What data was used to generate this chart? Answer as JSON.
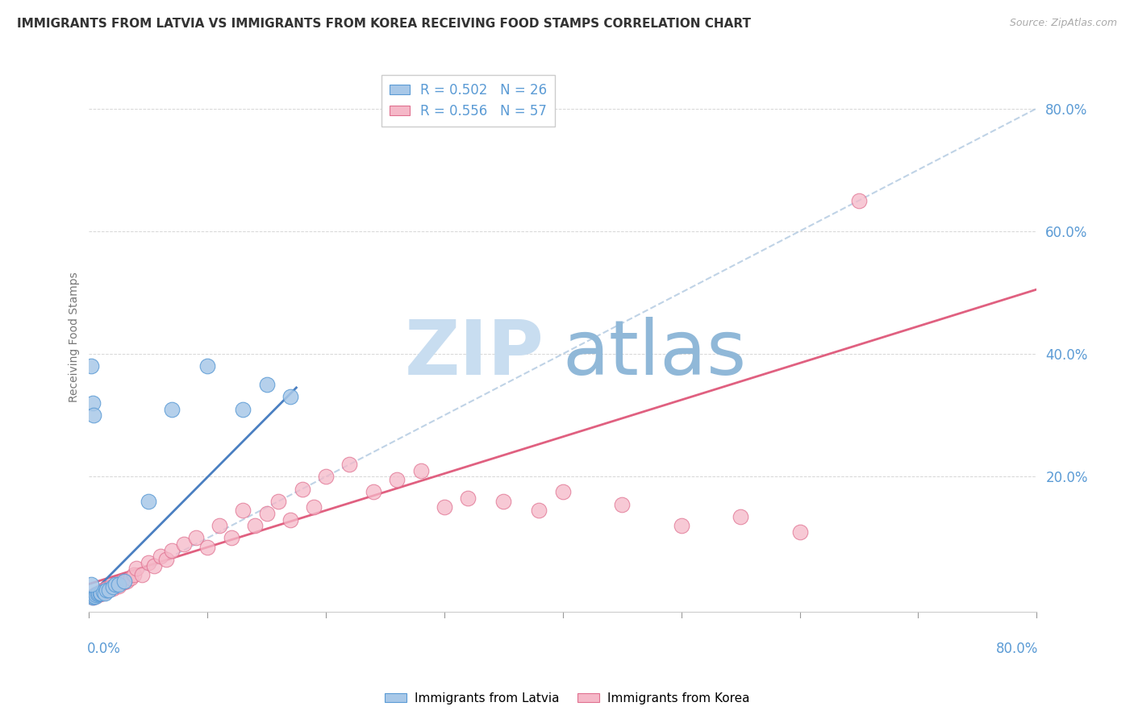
{
  "title": "IMMIGRANTS FROM LATVIA VS IMMIGRANTS FROM KOREA RECEIVING FOOD STAMPS CORRELATION CHART",
  "source": "Source: ZipAtlas.com",
  "ylabel": "Receiving Food Stamps",
  "yticks_labels": [
    "80.0%",
    "60.0%",
    "40.0%",
    "20.0%"
  ],
  "ytick_vals": [
    0.8,
    0.6,
    0.4,
    0.2
  ],
  "xlim": [
    0.0,
    0.8
  ],
  "ylim": [
    -0.02,
    0.875
  ],
  "legend_label_latvia": "Immigrants from Latvia",
  "legend_label_korea": "Immigrants from Korea",
  "color_latvia_fill": "#a8c8e8",
  "color_latvia_edge": "#5b9bd5",
  "color_korea_fill": "#f5b8c8",
  "color_korea_edge": "#e07090",
  "color_line_latvia": "#4a7fc1",
  "color_line_korea": "#e06080",
  "color_diag": "#b0c8e0",
  "color_axis_labels": "#5b9bd5",
  "color_title": "#333333",
  "watermark_zip": "ZIP",
  "watermark_atlas": "atlas",
  "watermark_color_zip": "#c8ddf0",
  "watermark_color_atlas": "#90b8d8",
  "background_color": "#ffffff",
  "grid_color": "#cccccc",
  "latvia_x": [
    0.003,
    0.004,
    0.005,
    0.006,
    0.007,
    0.008,
    0.009,
    0.01,
    0.012,
    0.013,
    0.015,
    0.017,
    0.02,
    0.022,
    0.025,
    0.03,
    0.05,
    0.07,
    0.1,
    0.13,
    0.15,
    0.17,
    0.002,
    0.003,
    0.004,
    0.002
  ],
  "latvia_y": [
    0.003,
    0.005,
    0.005,
    0.007,
    0.008,
    0.01,
    0.01,
    0.01,
    0.012,
    0.01,
    0.015,
    0.015,
    0.02,
    0.025,
    0.025,
    0.03,
    0.16,
    0.31,
    0.38,
    0.31,
    0.35,
    0.33,
    0.38,
    0.32,
    0.3,
    0.025
  ],
  "korea_x": [
    0.003,
    0.004,
    0.005,
    0.006,
    0.007,
    0.008,
    0.009,
    0.01,
    0.011,
    0.012,
    0.013,
    0.014,
    0.015,
    0.016,
    0.018,
    0.02,
    0.022,
    0.025,
    0.028,
    0.03,
    0.032,
    0.035,
    0.038,
    0.04,
    0.045,
    0.05,
    0.055,
    0.06,
    0.065,
    0.07,
    0.08,
    0.09,
    0.1,
    0.11,
    0.12,
    0.13,
    0.14,
    0.15,
    0.16,
    0.17,
    0.18,
    0.19,
    0.2,
    0.22,
    0.24,
    0.26,
    0.28,
    0.3,
    0.32,
    0.35,
    0.38,
    0.4,
    0.45,
    0.5,
    0.55,
    0.6,
    0.65
  ],
  "korea_y": [
    0.004,
    0.006,
    0.005,
    0.008,
    0.007,
    0.01,
    0.009,
    0.012,
    0.01,
    0.015,
    0.012,
    0.014,
    0.018,
    0.015,
    0.02,
    0.018,
    0.025,
    0.022,
    0.03,
    0.028,
    0.03,
    0.035,
    0.04,
    0.05,
    0.04,
    0.06,
    0.055,
    0.07,
    0.065,
    0.08,
    0.09,
    0.1,
    0.085,
    0.12,
    0.1,
    0.145,
    0.12,
    0.14,
    0.16,
    0.13,
    0.18,
    0.15,
    0.2,
    0.22,
    0.175,
    0.195,
    0.21,
    0.15,
    0.165,
    0.16,
    0.145,
    0.175,
    0.155,
    0.12,
    0.135,
    0.11,
    0.65
  ],
  "latvia_line_x": [
    0.0,
    0.175
  ],
  "latvia_line_y": [
    0.005,
    0.345
  ],
  "korea_line_x": [
    0.0,
    0.8
  ],
  "korea_line_y": [
    0.025,
    0.505
  ],
  "diag_line_x": [
    0.0,
    0.8
  ],
  "diag_line_y": [
    0.0,
    0.8
  ]
}
